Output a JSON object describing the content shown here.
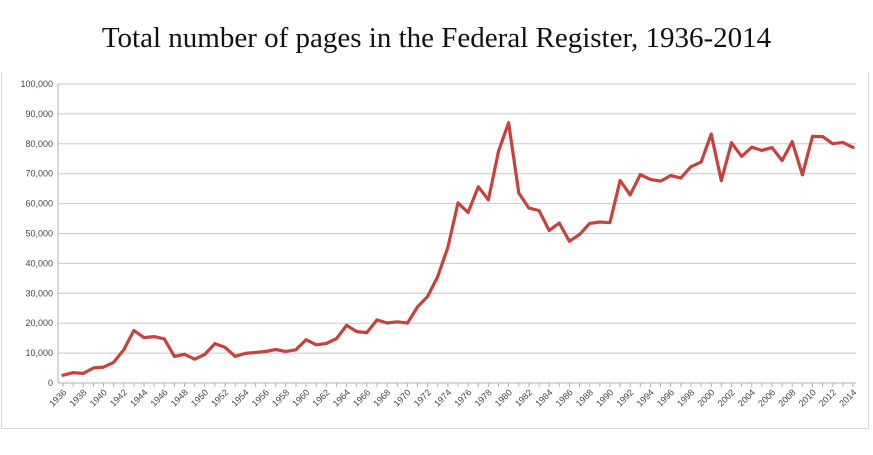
{
  "chart_data": {
    "type": "line",
    "title": "Total number of pages in the Federal Register, 1936-2014",
    "xlabel": "",
    "ylabel": "",
    "ylim": [
      0,
      100000
    ],
    "grid": true,
    "legend": "none",
    "line_color": "#c9413b",
    "y_ticks": [
      "0",
      "10,000",
      "20,000",
      "30,000",
      "40,000",
      "50,000",
      "60,000",
      "70,000",
      "80,000",
      "90,000",
      "100,000"
    ],
    "x": [
      1936,
      1937,
      1938,
      1939,
      1940,
      1941,
      1942,
      1943,
      1944,
      1945,
      1946,
      1947,
      1948,
      1949,
      1950,
      1951,
      1952,
      1953,
      1954,
      1955,
      1956,
      1957,
      1958,
      1959,
      1960,
      1961,
      1962,
      1963,
      1964,
      1965,
      1966,
      1967,
      1968,
      1969,
      1970,
      1971,
      1972,
      1973,
      1974,
      1975,
      1976,
      1977,
      1978,
      1979,
      1980,
      1981,
      1982,
      1983,
      1984,
      1985,
      1986,
      1987,
      1988,
      1989,
      1990,
      1991,
      1992,
      1993,
      1994,
      1995,
      1996,
      1997,
      1998,
      1999,
      2000,
      2001,
      2002,
      2003,
      2004,
      2005,
      2006,
      2007,
      2008,
      2009,
      2010,
      2011,
      2012,
      2013,
      2014
    ],
    "series": [
      {
        "name": "Pages",
        "values": [
          2620,
          3450,
          3194,
          5007,
          5307,
          6877,
          11134,
          17553,
          15194,
          15508,
          14736,
          8902,
          9608,
          7952,
          9562,
          13175,
          11896,
          8912,
          9910,
          10196,
          10528,
          11156,
          10579,
          11116,
          14479,
          12792,
          13226,
          14842,
          19304,
          17206,
          16850,
          21088,
          20068,
          20464,
          20036,
          25442,
          28924,
          35592,
          45422,
          60221,
          57072,
          65603,
          61261,
          77498,
          87012,
          63554,
          58494,
          57704,
          50998,
          53480,
          47418,
          49654,
          53376,
          53842,
          53620,
          67716,
          62928,
          69684,
          68108,
          67518,
          69368,
          68530,
          72356,
          73880,
          83294,
          67702,
          80332,
          75798,
          78852,
          77777,
          78724,
          74408,
          80700,
          69643,
          82480,
          82415,
          80050,
          80462,
          78796
        ]
      }
    ],
    "x_tick_labels": [
      "1936",
      "1938",
      "1940",
      "1942",
      "1944",
      "1946",
      "1948",
      "1950",
      "1952",
      "1954",
      "1956",
      "1958",
      "1960",
      "1962",
      "1964",
      "1966",
      "1968",
      "1970",
      "1972",
      "1974",
      "1976",
      "1978",
      "1980",
      "1982",
      "1984",
      "1986",
      "1988",
      "1990",
      "1992",
      "1994",
      "1996",
      "1998",
      "2000",
      "2002",
      "2004",
      "2006",
      "2008",
      "2010",
      "2012",
      "2014"
    ]
  }
}
